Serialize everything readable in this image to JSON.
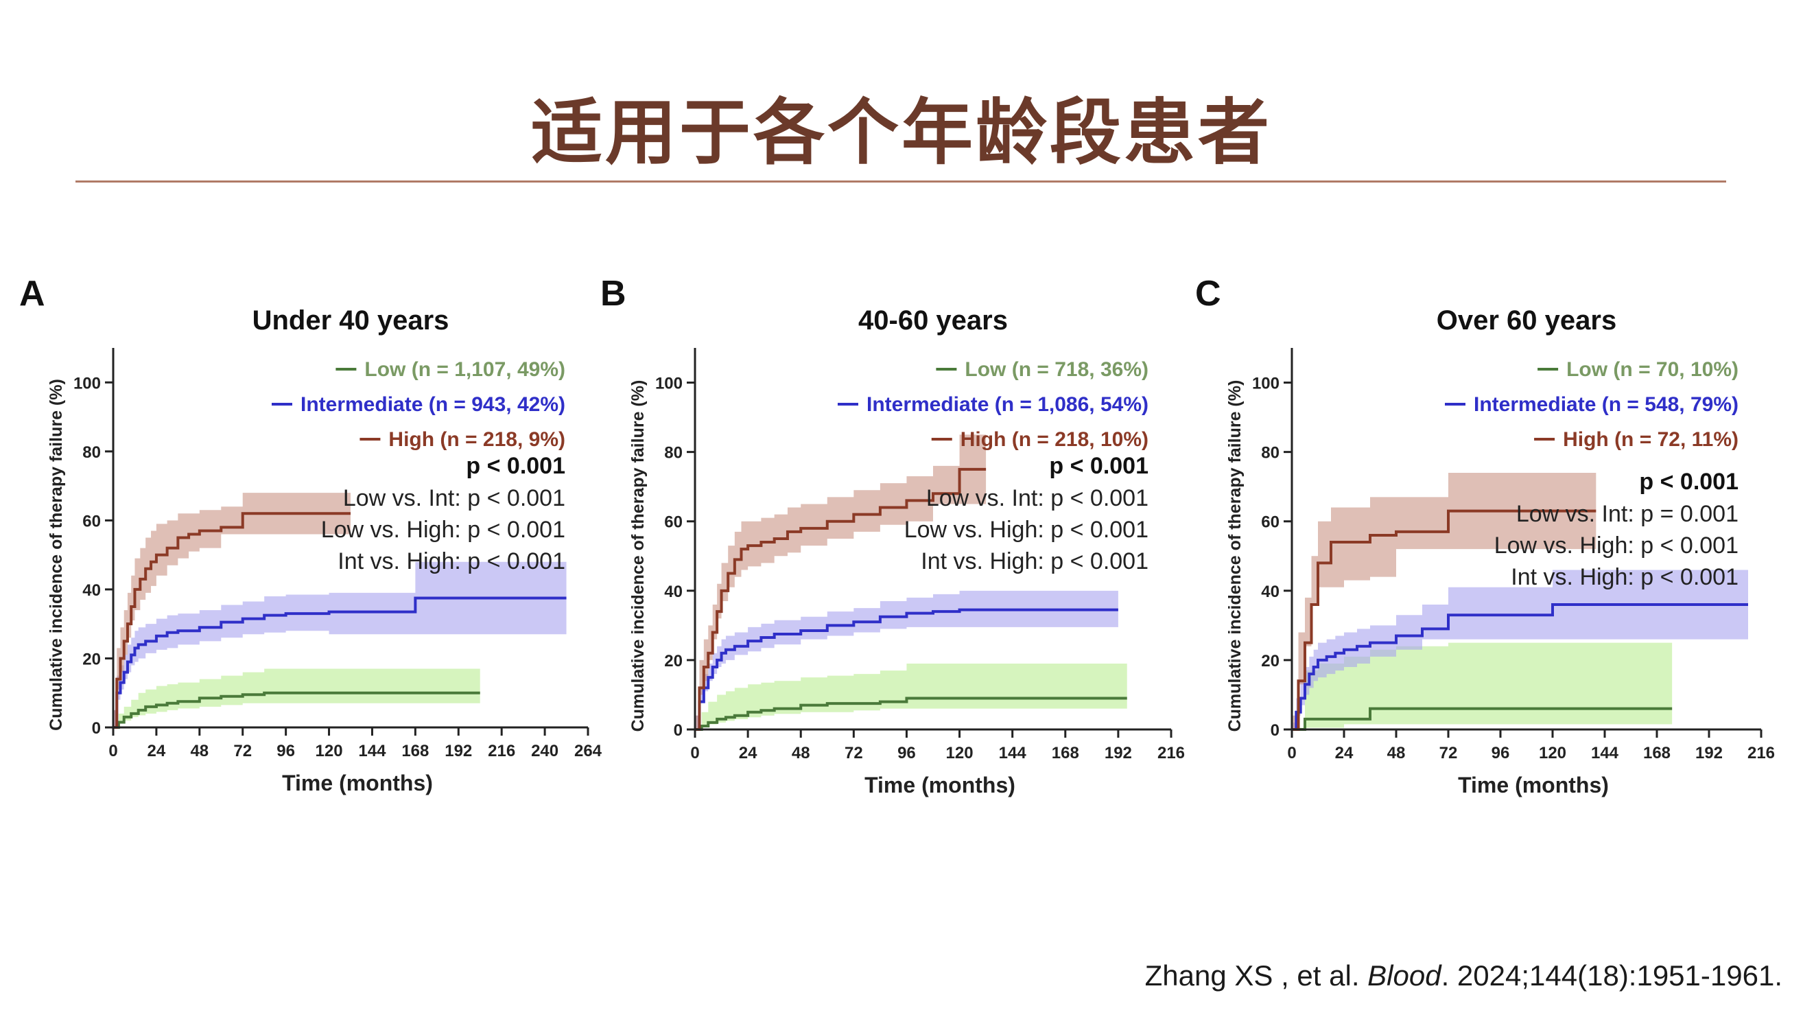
{
  "slide": {
    "title": "适用于各个年龄段患者",
    "citation": {
      "authors": "Zhang XS , et al.",
      "journal": "Blood",
      "ref": ". 2024;144(18):1951-1961."
    }
  },
  "colors": {
    "title": "#6b3a2a",
    "low_line": "#4a7a3a",
    "low_band": "#c8f0a8",
    "low_legend": "#7a9a64",
    "int_line": "#2f2fc8",
    "int_band": "#a8a4ee",
    "high_line": "#8b3a26",
    "high_band": "#c99486"
  },
  "chart_data": [
    {
      "panel": "A",
      "type": "line",
      "title": "Under 40 years",
      "xlabel": "Time (months)",
      "ylabel": "Cumulative incidence of therapy failure (%)",
      "xlim": [
        0,
        264
      ],
      "ylim": [
        0,
        110
      ],
      "xticks": [
        0,
        24,
        48,
        72,
        96,
        120,
        144,
        168,
        192,
        216,
        240,
        264
      ],
      "yticks": [
        0,
        20,
        40,
        60,
        80,
        100
      ],
      "stats": {
        "overall": "p < 0.001",
        "comparisons": [
          {
            "label": "Low vs. Int:",
            "p": "p < 0.001"
          },
          {
            "label": "Low vs. High:",
            "p": "p < 0.001"
          },
          {
            "label": "Int vs. High:",
            "p": "p < 0.001"
          }
        ]
      },
      "series": [
        {
          "name": "Low (n = 1,107, 49%)",
          "key": "low",
          "x": [
            0,
            3,
            6,
            10,
            14,
            18,
            24,
            30,
            36,
            48,
            60,
            72,
            84,
            96,
            120,
            204
          ],
          "y": [
            0,
            1.5,
            3,
            4,
            5,
            6,
            6.5,
            7,
            7.5,
            8.5,
            9,
            9.5,
            10,
            10,
            10,
            10
          ],
          "lower": [
            0,
            0.5,
            1.5,
            2,
            3,
            3.5,
            4,
            4.5,
            5,
            5.5,
            6,
            6.5,
            7,
            7,
            7,
            7
          ],
          "upper": [
            0,
            4,
            6,
            8,
            10,
            11,
            12,
            12.5,
            13,
            14,
            15,
            16,
            17,
            17,
            17,
            17
          ]
        },
        {
          "name": "Intermediate (n = 943, 42%)",
          "key": "int",
          "x": [
            0,
            2,
            4,
            6,
            8,
            10,
            12,
            14,
            18,
            24,
            30,
            36,
            48,
            60,
            72,
            84,
            96,
            120,
            168,
            252
          ],
          "y": [
            0,
            10,
            13,
            16,
            19,
            21,
            23,
            24,
            25,
            26.5,
            27.5,
            28,
            29,
            30.5,
            31.5,
            32.5,
            33,
            33.5,
            37.5,
            37.5
          ],
          "lower": [
            0,
            5,
            8,
            11,
            14,
            16,
            18,
            19,
            20,
            21.5,
            22.5,
            23,
            24,
            25,
            26,
            27,
            27.5,
            28,
            27,
            27
          ],
          "upper": [
            0,
            15,
            18,
            21,
            24,
            26,
            28,
            29,
            30,
            31.5,
            32.5,
            33,
            34,
            35.5,
            36.5,
            38,
            38.5,
            39,
            48,
            48
          ]
        },
        {
          "name": "High (n = 218, 9%)",
          "key": "high",
          "x": [
            0,
            2,
            4,
            6,
            8,
            10,
            12,
            15,
            18,
            21,
            24,
            30,
            36,
            42,
            48,
            60,
            72,
            96,
            132
          ],
          "y": [
            0,
            14,
            20,
            25,
            30,
            35,
            40,
            43,
            46,
            48,
            50,
            52,
            55,
            56,
            57,
            58,
            62,
            62,
            62
          ],
          "lower": [
            0,
            5,
            11,
            16,
            21,
            26,
            31,
            34,
            37,
            39,
            41,
            44,
            47,
            49,
            51,
            52,
            56,
            56,
            56
          ],
          "upper": [
            0,
            23,
            29,
            34,
            39,
            44,
            49,
            52,
            55,
            57,
            59,
            60,
            62,
            62,
            63,
            64,
            68,
            68,
            68
          ]
        }
      ]
    },
    {
      "panel": "B",
      "type": "line",
      "title": "40-60 years",
      "xlabel": "Time (months)",
      "ylabel": "Cumulative incidence of therapy failure (%)",
      "xlim": [
        0,
        216
      ],
      "ylim": [
        0,
        110
      ],
      "xticks": [
        0,
        24,
        48,
        72,
        96,
        120,
        144,
        168,
        192,
        216
      ],
      "yticks": [
        0,
        20,
        40,
        60,
        80,
        100
      ],
      "stats": {
        "overall": "p < 0.001",
        "comparisons": [
          {
            "label": "Low vs. Int:",
            "p": "p < 0.001"
          },
          {
            "label": "Low vs. High:",
            "p": "p < 0.001"
          },
          {
            "label": "Int vs. High:",
            "p": "p < 0.001"
          }
        ]
      },
      "series": [
        {
          "name": "Low (n = 718, 36%)",
          "key": "low",
          "x": [
            0,
            3,
            6,
            10,
            14,
            18,
            24,
            30,
            36,
            48,
            60,
            72,
            84,
            96,
            120,
            144,
            196
          ],
          "y": [
            0,
            1,
            2,
            3,
            3.5,
            4,
            5,
            5.5,
            6,
            7,
            7.5,
            7.5,
            8,
            9,
            9,
            9,
            9
          ],
          "lower": [
            0,
            0.3,
            1,
            1.5,
            2,
            2.5,
            3,
            3.5,
            4,
            4.5,
            5,
            5,
            5.5,
            6,
            6,
            6,
            6
          ],
          "upper": [
            0,
            5,
            8,
            10,
            11,
            12,
            13,
            13.5,
            14,
            15,
            15.5,
            16,
            17,
            19,
            19,
            19,
            19
          ]
        },
        {
          "name": "Intermediate (n = 1,086, 54%)",
          "key": "int",
          "x": [
            0,
            2,
            4,
            6,
            8,
            10,
            12,
            14,
            18,
            24,
            30,
            36,
            48,
            60,
            72,
            84,
            96,
            108,
            120,
            144,
            192
          ],
          "y": [
            0,
            8,
            12,
            15,
            18,
            20,
            22,
            23,
            24,
            25.5,
            26.5,
            27.5,
            28.5,
            30,
            31,
            32.5,
            33.5,
            34,
            34.5,
            34.5,
            34.5
          ],
          "lower": [
            0,
            4,
            8,
            11,
            14,
            16,
            18,
            19,
            20,
            21.5,
            22.5,
            23.5,
            24.5,
            26,
            27,
            28,
            29,
            29.5,
            29.5,
            29.5,
            29.5
          ],
          "upper": [
            0,
            12,
            16,
            19,
            22,
            24,
            26,
            27,
            28,
            29.5,
            30.5,
            31.5,
            32.5,
            34,
            35,
            37,
            38,
            39,
            40,
            40,
            40
          ]
        },
        {
          "name": "High (n = 218, 10%)",
          "key": "high",
          "x": [
            0,
            2,
            4,
            6,
            8,
            10,
            12,
            15,
            18,
            21,
            24,
            30,
            36,
            42,
            48,
            60,
            72,
            84,
            96,
            108,
            120,
            132
          ],
          "y": [
            0,
            12,
            18,
            22,
            28,
            34,
            40,
            45,
            49,
            52,
            53,
            54,
            55,
            57,
            58,
            60,
            62,
            64,
            66,
            68,
            75,
            75
          ],
          "lower": [
            0,
            4,
            10,
            14,
            20,
            26,
            32,
            37,
            41,
            44,
            46,
            47,
            48,
            50,
            51,
            53,
            55,
            57,
            59,
            60,
            65,
            65
          ],
          "upper": [
            0,
            20,
            26,
            30,
            36,
            42,
            48,
            53,
            57,
            60,
            60,
            61,
            62,
            64,
            65,
            67,
            69,
            71,
            73,
            76,
            85,
            85
          ]
        }
      ]
    },
    {
      "panel": "C",
      "type": "line",
      "title": "Over 60 years",
      "xlabel": "Time (months)",
      "ylabel": "Cumulative incidence of therapy failure (%)",
      "xlim": [
        0,
        216
      ],
      "ylim": [
        0,
        110
      ],
      "xticks": [
        0,
        24,
        48,
        72,
        96,
        120,
        144,
        168,
        192,
        216
      ],
      "yticks": [
        0,
        20,
        40,
        60,
        80,
        100
      ],
      "stats": {
        "overall": "p < 0.001",
        "comparisons": [
          {
            "label": "Low vs. Int:",
            "p": "p = 0.001"
          },
          {
            "label": "Low vs. High:",
            "p": "p < 0.001"
          },
          {
            "label": "Int vs. High:",
            "p": "p < 0.001"
          }
        ]
      },
      "series": [
        {
          "name": "Low (n = 70, 10%)",
          "key": "low",
          "x": [
            0,
            6,
            12,
            24,
            36,
            48,
            72,
            120,
            175
          ],
          "y": [
            0,
            3,
            3,
            3,
            6,
            6,
            6,
            6,
            6
          ],
          "lower": [
            0,
            0.5,
            0.5,
            0.5,
            1.5,
            1.5,
            1.5,
            1.5,
            1.5
          ],
          "upper": [
            0,
            17,
            19,
            21,
            23,
            24,
            25,
            25,
            25
          ]
        },
        {
          "name": "Intermediate (n = 548, 79%)",
          "key": "int",
          "x": [
            0,
            2,
            4,
            6,
            8,
            10,
            12,
            16,
            20,
            24,
            30,
            36,
            48,
            60,
            72,
            96,
            120,
            210
          ],
          "y": [
            0,
            5,
            9,
            13,
            16,
            18,
            20,
            21,
            22,
            23,
            24,
            25,
            27,
            29,
            33,
            33,
            36,
            36
          ],
          "lower": [
            0,
            2,
            4,
            7,
            10,
            12,
            14,
            15,
            16,
            17,
            18,
            19,
            21,
            23,
            26,
            26,
            26,
            26
          ],
          "upper": [
            0,
            9,
            14,
            18,
            21,
            23,
            25,
            26,
            27,
            28,
            29,
            30,
            33,
            36,
            41,
            41,
            46,
            46
          ]
        },
        {
          "name": "High (n = 72, 11%)",
          "key": "high",
          "x": [
            0,
            3,
            6,
            9,
            12,
            18,
            24,
            36,
            48,
            72,
            140
          ],
          "y": [
            0,
            14,
            25,
            36,
            48,
            54,
            54,
            56,
            57,
            63,
            63
          ],
          "lower": [
            0,
            4,
            13,
            24,
            36,
            41,
            41,
            43,
            44,
            52,
            52
          ],
          "upper": [
            0,
            28,
            38,
            50,
            60,
            64,
            64,
            67,
            67,
            74,
            74
          ]
        }
      ]
    }
  ]
}
